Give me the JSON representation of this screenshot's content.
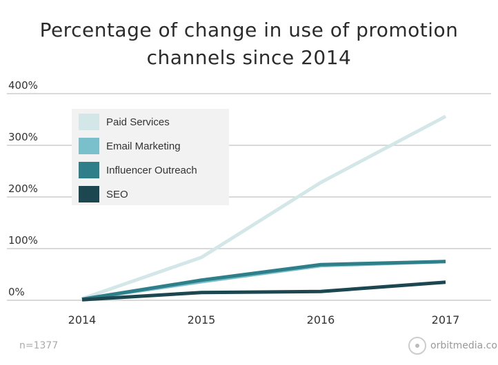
{
  "chart_data": {
    "type": "line",
    "title": "Percentage of change in use of promotion channels since 2014",
    "title_lines": [
      "Percentage of change in use of promotion",
      "channels since 2014"
    ],
    "x": [
      "2014",
      "2015",
      "2016",
      "2017"
    ],
    "ylim": [
      0,
      400
    ],
    "yticks": [
      "0%",
      "100%",
      "200%",
      "300%",
      "400%"
    ],
    "ytick_values": [
      0,
      100,
      200,
      300,
      400
    ],
    "grid": true,
    "legend_placement": "top-left",
    "series": [
      {
        "name": "Paid Services",
        "color": "#d3e7e8",
        "values": [
          3,
          83,
          228,
          356
        ]
      },
      {
        "name": "Email Marketing",
        "color": "#79c0cc",
        "values": [
          2,
          36,
          67,
          75
        ]
      },
      {
        "name": "Influencer Outreach",
        "color": "#2f7f8a",
        "values": [
          2,
          39,
          69,
          75
        ]
      },
      {
        "name": "SEO",
        "color": "#1c4650",
        "values": [
          1,
          15,
          17,
          35
        ]
      }
    ],
    "note": "n=1377",
    "source": "orbitmedia.com"
  }
}
